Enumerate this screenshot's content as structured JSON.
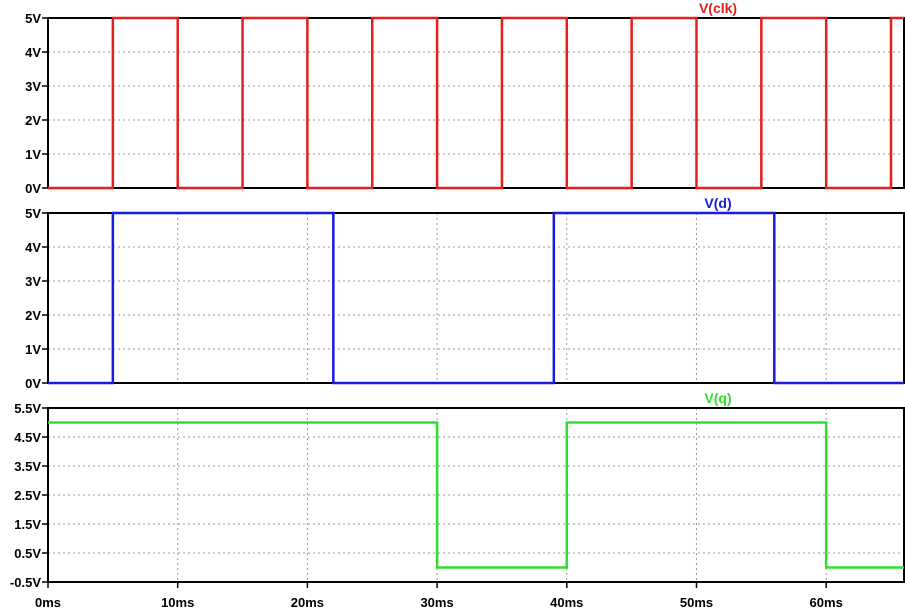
{
  "chart_data": {
    "type": "line",
    "x_unit": "ms",
    "x_ticks": [
      0,
      10,
      20,
      30,
      40,
      50,
      60
    ],
    "x_tick_labels": [
      "0ms",
      "10ms",
      "20ms",
      "30ms",
      "40ms",
      "50ms",
      "60ms"
    ],
    "xlim": [
      0,
      66
    ],
    "grid": true,
    "panes": [
      {
        "name": "V(clk)",
        "color": "#e51e1e",
        "ylim": [
          0,
          5
        ],
        "y_ticks": [
          0,
          1,
          2,
          3,
          4,
          5
        ],
        "y_tick_labels": [
          "0V",
          "1V",
          "2V",
          "3V",
          "4V",
          "5V"
        ],
        "points": [
          [
            0,
            0
          ],
          [
            5,
            0
          ],
          [
            5,
            5
          ],
          [
            10,
            5
          ],
          [
            10,
            0
          ],
          [
            15,
            0
          ],
          [
            15,
            5
          ],
          [
            20,
            5
          ],
          [
            20,
            0
          ],
          [
            25,
            0
          ],
          [
            25,
            5
          ],
          [
            30,
            5
          ],
          [
            30,
            0
          ],
          [
            35,
            0
          ],
          [
            35,
            5
          ],
          [
            40,
            5
          ],
          [
            40,
            0
          ],
          [
            45,
            0
          ],
          [
            45,
            5
          ],
          [
            50,
            5
          ],
          [
            50,
            0
          ],
          [
            55,
            0
          ],
          [
            55,
            5
          ],
          [
            60,
            5
          ],
          [
            60,
            0
          ],
          [
            65,
            0
          ],
          [
            65,
            5
          ],
          [
            66,
            5
          ]
        ]
      },
      {
        "name": "V(d)",
        "color": "#1a1ae0",
        "ylim": [
          0,
          5
        ],
        "y_ticks": [
          0,
          1,
          2,
          3,
          4,
          5
        ],
        "y_tick_labels": [
          "0V",
          "1V",
          "2V",
          "3V",
          "4V",
          "5V"
        ],
        "points": [
          [
            0,
            0
          ],
          [
            5,
            0
          ],
          [
            5,
            5
          ],
          [
            22,
            5
          ],
          [
            22,
            0
          ],
          [
            39,
            0
          ],
          [
            39,
            5
          ],
          [
            56,
            5
          ],
          [
            56,
            0
          ],
          [
            66,
            0
          ]
        ]
      },
      {
        "name": "V(q)",
        "color": "#2ee02e",
        "ylim": [
          -0.5,
          5.5
        ],
        "y_ticks": [
          -0.5,
          0.5,
          1.5,
          2.5,
          3.5,
          4.5,
          5.5
        ],
        "y_tick_labels": [
          "-0.5V",
          "0.5V",
          "1.5V",
          "2.5V",
          "3.5V",
          "4.5V",
          "5.5V"
        ],
        "points": [
          [
            0,
            5
          ],
          [
            30,
            5
          ],
          [
            30,
            0
          ],
          [
            40,
            0
          ],
          [
            40,
            5
          ],
          [
            60,
            5
          ],
          [
            60,
            0
          ],
          [
            66,
            0
          ]
        ]
      }
    ]
  }
}
